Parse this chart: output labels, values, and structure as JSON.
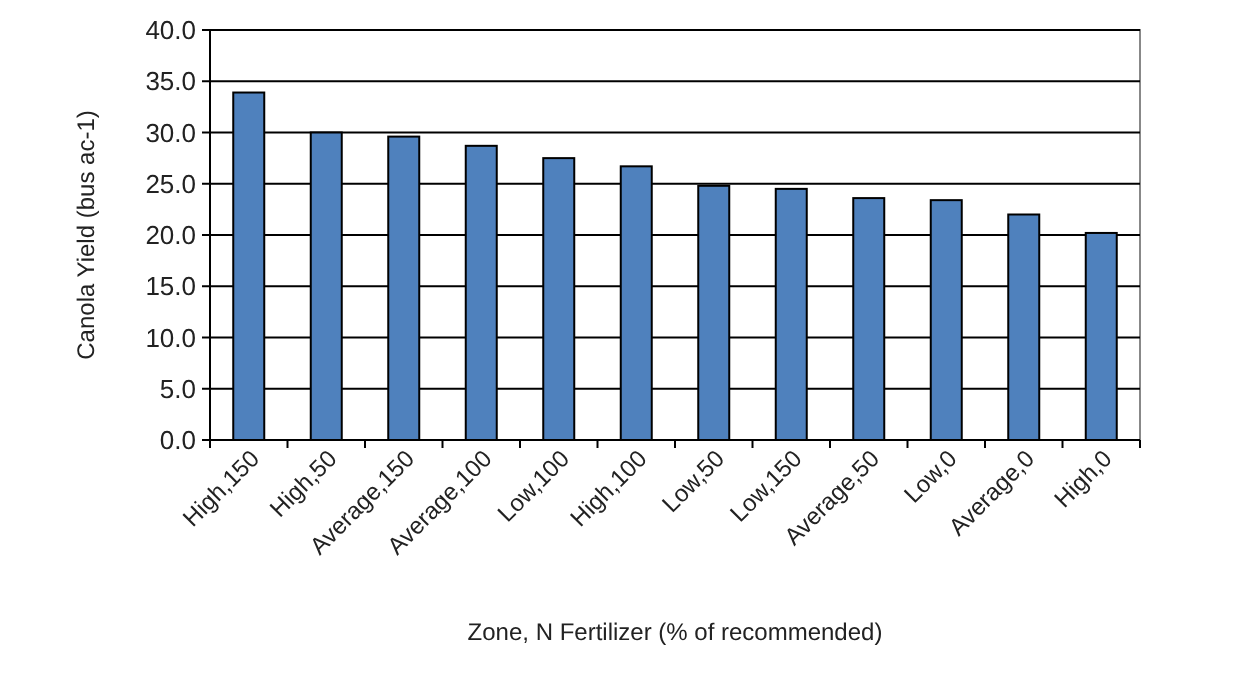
{
  "chart_data": {
    "type": "bar",
    "xlabel": "Zone, N Fertilizer (% of recommended)",
    "ylabel": "Canola Yield (bus ac-1)",
    "categories": [
      "High,150",
      "High,50",
      "Average,150",
      "Average,100",
      "Low,100",
      "High,100",
      "Low,50",
      "Low,150",
      "Average,50",
      "Low,0",
      "Average,0",
      "High,0"
    ],
    "values": [
      33.9,
      30.0,
      29.6,
      28.7,
      27.5,
      26.7,
      24.8,
      24.5,
      23.6,
      23.4,
      22.0,
      20.2
    ],
    "color": "#4f81bd",
    "ylim": [
      0,
      40
    ],
    "yticks": [
      {
        "value": 0,
        "label": "0.0"
      },
      {
        "value": 5,
        "label": "5.0"
      },
      {
        "value": 10,
        "label": "10.0"
      },
      {
        "value": 15,
        "label": "15.0"
      },
      {
        "value": 20,
        "label": "20.0"
      },
      {
        "value": 25,
        "label": "25.0"
      },
      {
        "value": 30,
        "label": "30.0"
      },
      {
        "value": 35,
        "label": "35.0"
      },
      {
        "value": 40,
        "label": "40.0"
      }
    ],
    "grid": "y"
  }
}
